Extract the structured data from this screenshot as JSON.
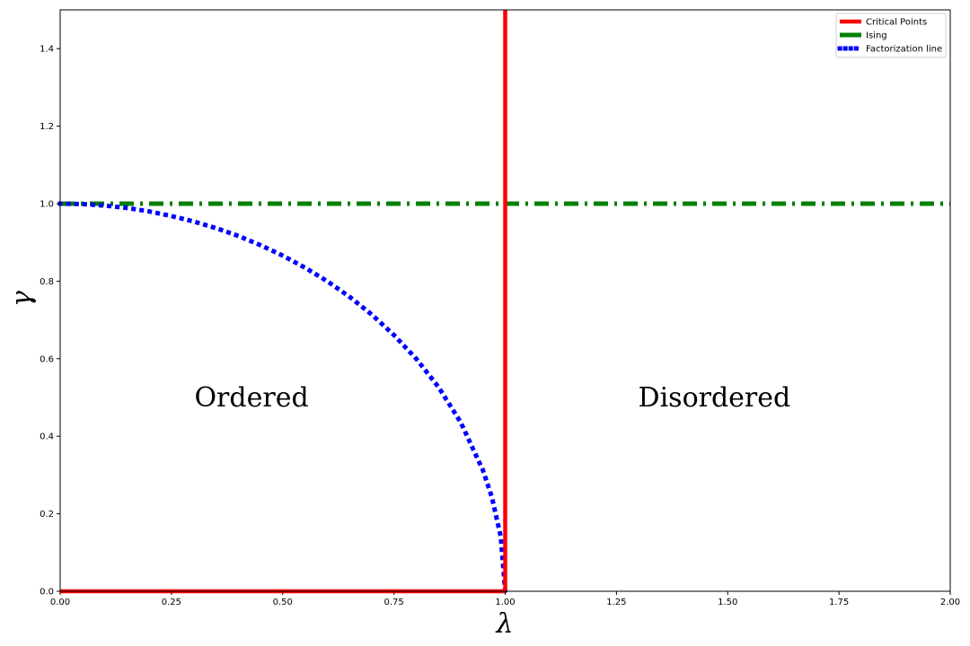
{
  "chart_data": {
    "type": "line",
    "title": "",
    "xlabel": "λ",
    "ylabel": "γ",
    "xlim": [
      0,
      2
    ],
    "ylim": [
      0,
      1.5
    ],
    "x_ticks": [
      "0.00",
      "0.25",
      "0.50",
      "0.75",
      "1.00",
      "1.25",
      "1.50",
      "1.75",
      "2.00"
    ],
    "y_ticks": [
      "0.0",
      "0.2",
      "0.4",
      "0.6",
      "0.8",
      "1.0",
      "1.2",
      "1.4"
    ],
    "grid": false,
    "legend_position": "top-right",
    "series": [
      {
        "name": "Critical Points",
        "color": "#ff0000",
        "style": "solid",
        "segments": [
          {
            "x": [
              1,
              1
            ],
            "y": [
              0,
              1.5
            ]
          },
          {
            "x": [
              0,
              1
            ],
            "y": [
              0,
              0
            ]
          }
        ]
      },
      {
        "name": "Ising",
        "color": "#008000",
        "style": "dashdot",
        "x": [
          0,
          2
        ],
        "y": [
          1,
          1
        ]
      },
      {
        "name": "Factorization line",
        "color": "#0000ff",
        "style": "dotted",
        "x": [
          0,
          0.05,
          0.1,
          0.15,
          0.2,
          0.25,
          0.3,
          0.35,
          0.4,
          0.45,
          0.5,
          0.55,
          0.6,
          0.65,
          0.7,
          0.75,
          0.8,
          0.85,
          0.9,
          0.95,
          0.97,
          0.99,
          1
        ],
        "y": [
          1,
          0.999,
          0.995,
          0.989,
          0.98,
          0.968,
          0.954,
          0.937,
          0.917,
          0.893,
          0.866,
          0.835,
          0.8,
          0.76,
          0.714,
          0.661,
          0.6,
          0.527,
          0.436,
          0.312,
          0.243,
          0.141,
          0
        ]
      }
    ],
    "annotations": [
      {
        "text": "Ordered",
        "x": 0.43,
        "y": 0.5
      },
      {
        "text": "Disordered",
        "x": 1.47,
        "y": 0.5
      }
    ]
  }
}
